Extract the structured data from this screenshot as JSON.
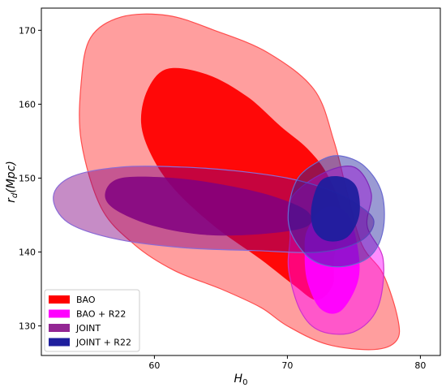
{
  "chart_data": {
    "type": "contour",
    "xlabel": "H",
    "xlabel_sub": "0",
    "ylabel": "r",
    "ylabel_sub": "d",
    "ylabel_suffix": "(Mpc)",
    "xlim": [
      51.5,
      81.5
    ],
    "ylim": [
      126,
      173
    ],
    "xticks": [
      60,
      70,
      80
    ],
    "yticks": [
      130,
      140,
      150,
      160,
      170
    ],
    "legend_position": "lower-left",
    "series": [
      {
        "name": "BAO",
        "color": "#ff0000",
        "outline": "#ff4d4d",
        "contours": {
          "outer": [
            [
              54.5,
              163
            ],
            [
              55.2,
              169
            ],
            [
              57.5,
              171.8
            ],
            [
              61,
              172
            ],
            [
              64.5,
              170
            ],
            [
              68.5,
              167
            ],
            [
              72,
              162
            ],
            [
              73.5,
              155
            ],
            [
              74.5,
              148
            ],
            [
              75.6,
              141
            ],
            [
              77.2,
              137
            ],
            [
              78.3,
              131
            ],
            [
              78.2,
              128
            ],
            [
              76.5,
              126.8
            ],
            [
              73,
              127.5
            ],
            [
              70,
              130
            ],
            [
              68,
              132.5
            ],
            [
              65,
              135
            ],
            [
              61.5,
              137.5
            ],
            [
              58.5,
              141
            ],
            [
              56,
              146
            ],
            [
              54.5,
              155
            ]
          ],
          "inner": [
            [
              59,
              157.5
            ],
            [
              59.5,
              162
            ],
            [
              61,
              164.8
            ],
            [
              64,
              164
            ],
            [
              67,
              161
            ],
            [
              69.5,
              157
            ],
            [
              71.5,
              154
            ],
            [
              73,
              150.5
            ],
            [
              74,
              145.5
            ],
            [
              73.5,
              139
            ],
            [
              73.4,
              135.5
            ],
            [
              72.2,
              133.5
            ],
            [
              70.5,
              135.5
            ],
            [
              68,
              139
            ],
            [
              64.5,
              143.5
            ],
            [
              61.5,
              148.5
            ],
            [
              59.8,
              153
            ]
          ]
        }
      },
      {
        "name": "BAO + R22",
        "color": "#ff00ff",
        "outline": "#cc33cc",
        "contours": {
          "outer": [
            [
              70.2,
              147
            ],
            [
              72.5,
              150.5
            ],
            [
              75,
              151.5
            ],
            [
              76.3,
              148
            ],
            [
              76,
              143.5
            ],
            [
              77.2,
              139
            ],
            [
              76.8,
              132.5
            ],
            [
              75,
              129.2
            ],
            [
              72.5,
              129.3
            ],
            [
              71,
              132
            ],
            [
              70.1,
              137.5
            ],
            [
              70.2,
              142
            ]
          ],
          "inner": [
            [
              71.5,
              143
            ],
            [
              72.8,
              146
            ],
            [
              74.5,
              145.2
            ],
            [
              75.3,
              140.5
            ],
            [
              75.3,
              136
            ],
            [
              74,
              132
            ],
            [
              72.5,
              132.3
            ],
            [
              71.5,
              136
            ],
            [
              71.3,
              140
            ]
          ]
        }
      },
      {
        "name": "JOINT",
        "color": "#800080",
        "outline": "#8a6bd6",
        "contours": {
          "outer": [
            [
              52.4,
              147.5
            ],
            [
              53.8,
              150.2
            ],
            [
              57.5,
              151.5
            ],
            [
              62,
              151.5
            ],
            [
              66,
              151
            ],
            [
              70,
              150
            ],
            [
              73,
              148.5
            ],
            [
              75.2,
              146.5
            ],
            [
              76.5,
              144.2
            ],
            [
              75.5,
              141.5
            ],
            [
              72.5,
              140
            ],
            [
              67.5,
              140.2
            ],
            [
              62,
              140.6
            ],
            [
              57,
              141.8
            ],
            [
              53.5,
              144
            ]
          ],
          "inner": [
            [
              56.3,
              148
            ],
            [
              57.5,
              150
            ],
            [
              61.5,
              150
            ],
            [
              65.5,
              149
            ],
            [
              69,
              147.5
            ],
            [
              71.5,
              145.5
            ],
            [
              71.5,
              143.5
            ],
            [
              68.5,
              142.5
            ],
            [
              64,
              142.3
            ],
            [
              60,
              143.5
            ],
            [
              57,
              145.8
            ]
          ]
        }
      },
      {
        "name": "JOINT + R22",
        "color": "#1f1f9e",
        "outline": "#6a6ad0",
        "contours": {
          "outer": [
            [
              70.1,
              146
            ],
            [
              70.8,
              150
            ],
            [
              72.5,
              152.4
            ],
            [
              74,
              153
            ],
            [
              75.8,
              151.6
            ],
            [
              77.1,
              148
            ],
            [
              77.2,
              143
            ],
            [
              76.2,
              139.4
            ],
            [
              74,
              138
            ],
            [
              71.8,
              139
            ],
            [
              70.3,
              142.5
            ]
          ],
          "inner": [
            [
              71.8,
              146
            ],
            [
              72.5,
              149.6
            ],
            [
              74,
              150.2
            ],
            [
              75.2,
              148.8
            ],
            [
              75.4,
              145
            ],
            [
              74.5,
              142
            ],
            [
              73,
              141.5
            ],
            [
              72,
              143
            ]
          ]
        }
      }
    ]
  }
}
